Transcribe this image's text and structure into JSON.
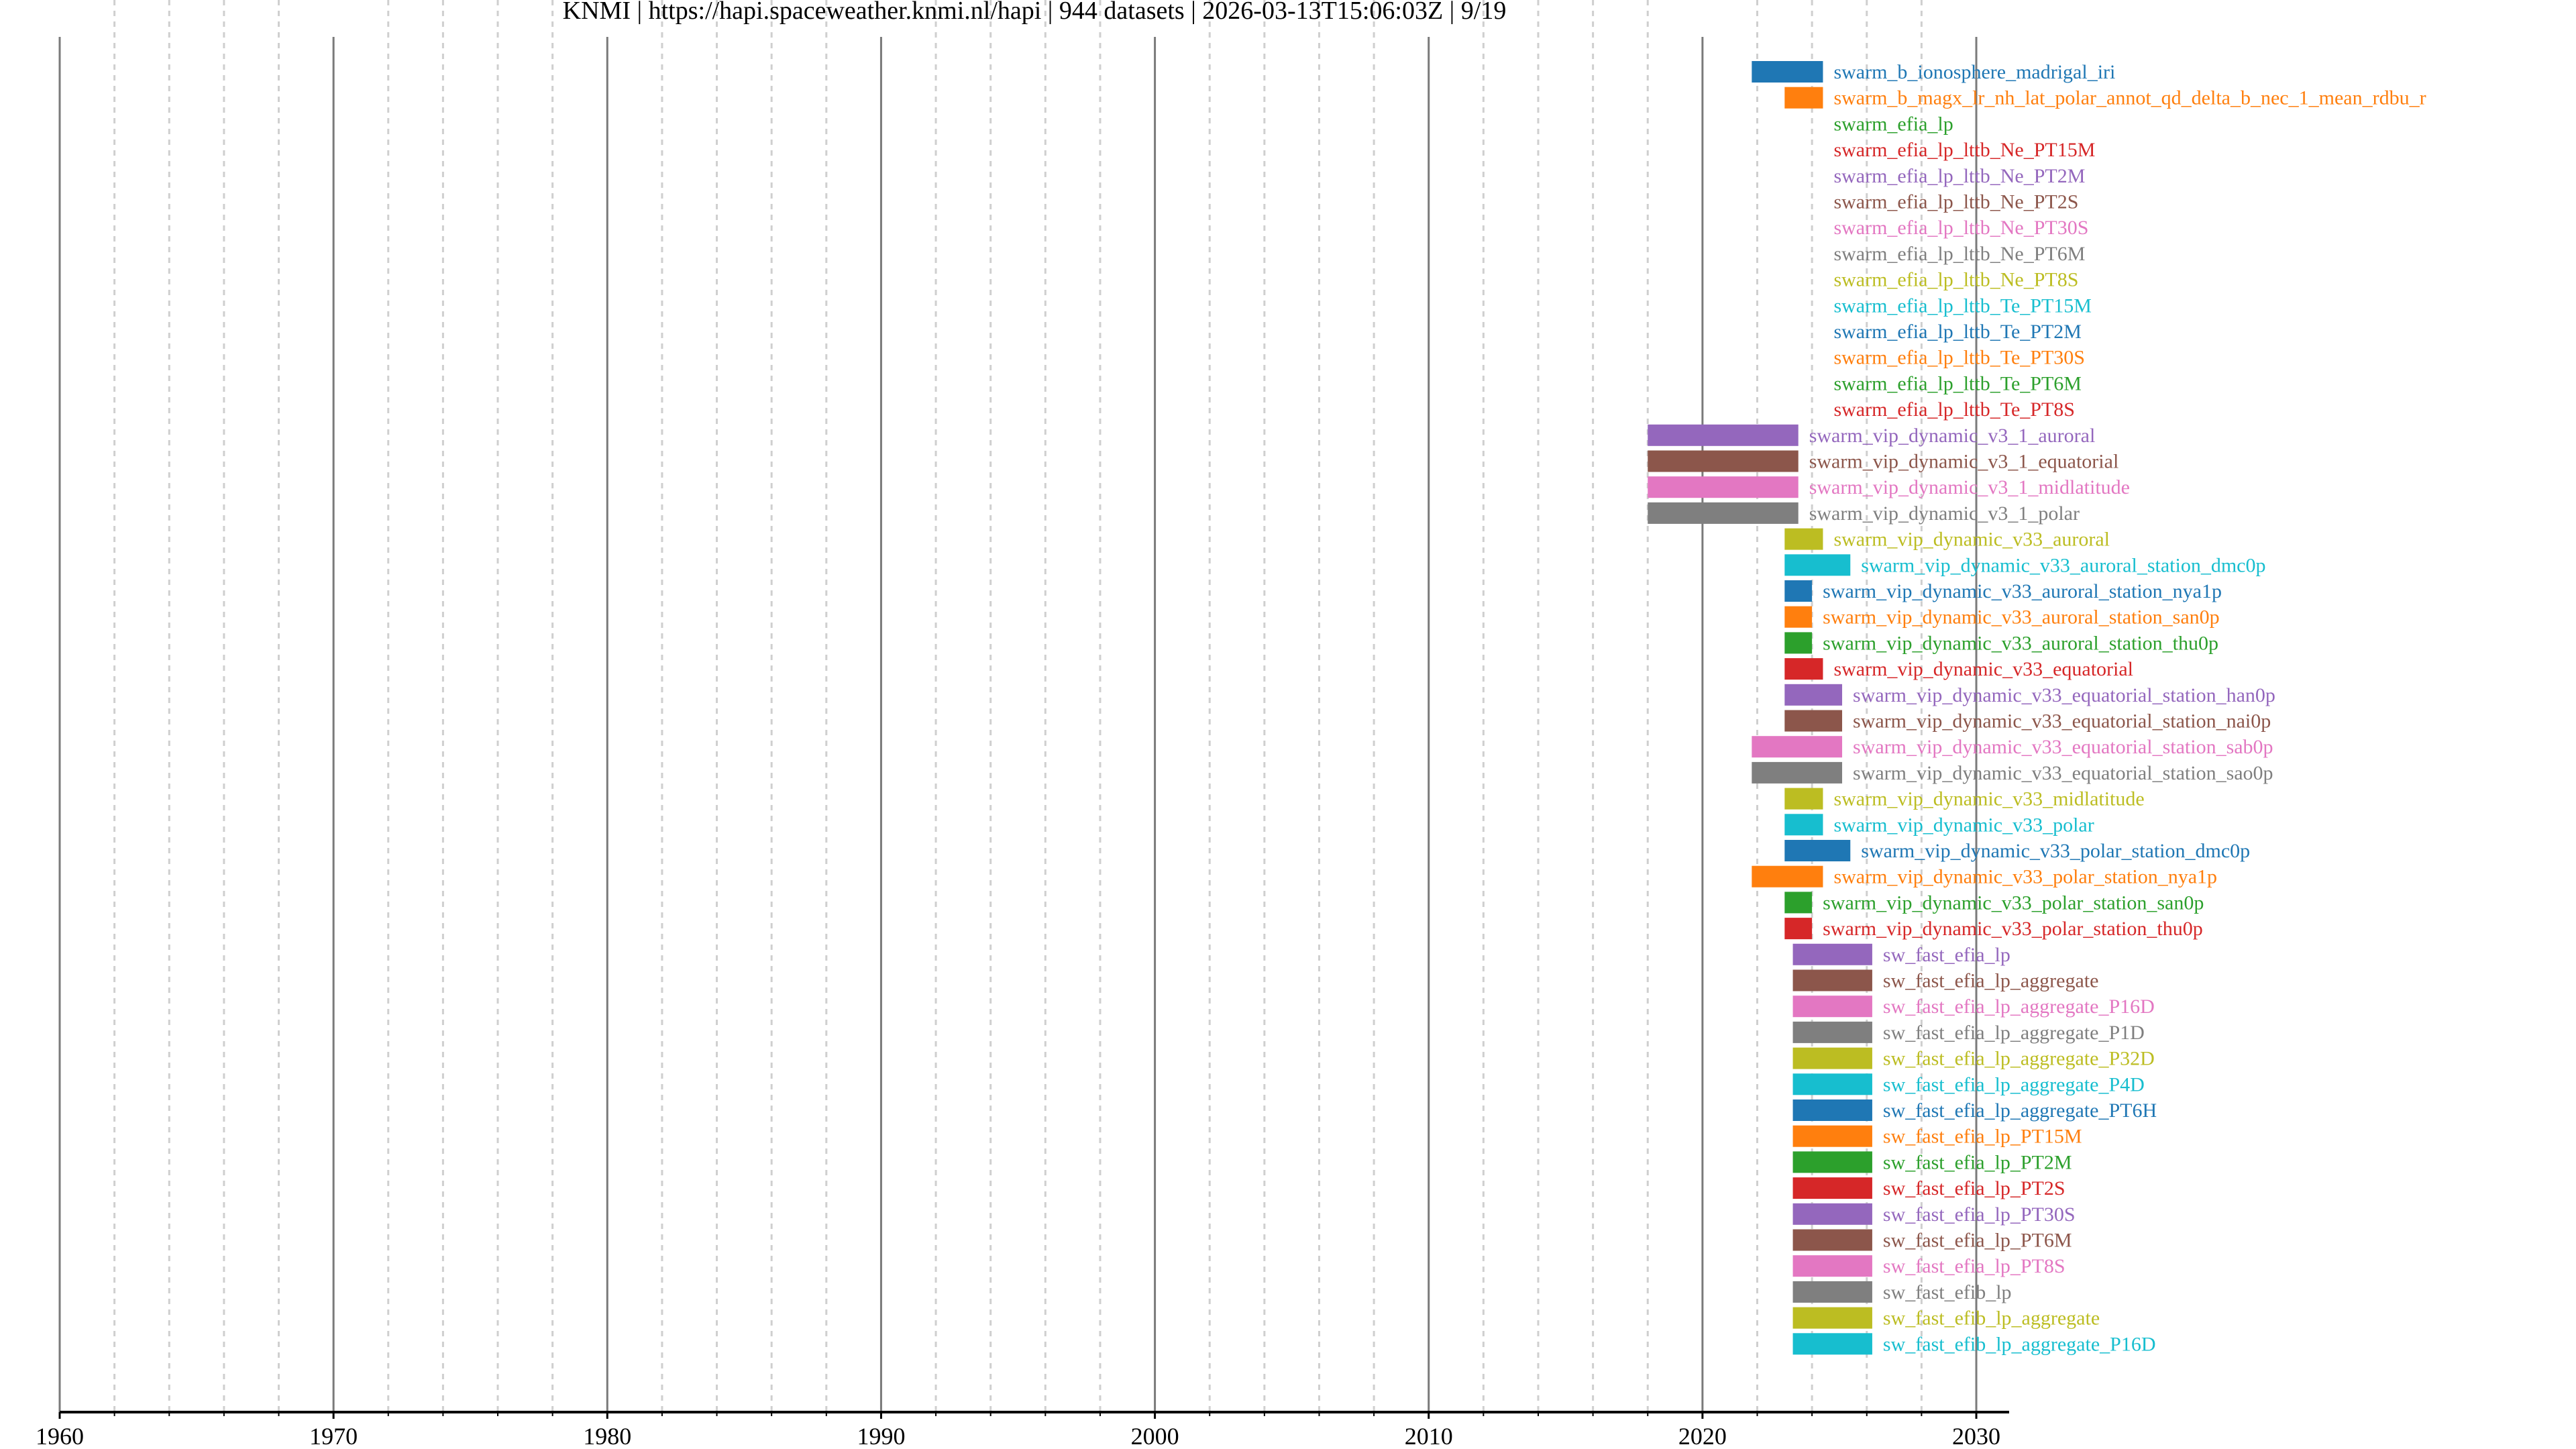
{
  "chart_data": {
    "type": "timeline",
    "title": "KNMI | https://hapi.spaceweather.knmi.nl/hapi | 944 datasets | 2026-03-13T15:06:03Z | 9/19",
    "xlabel": "",
    "ylabel": "",
    "xlim": [
      1960,
      2031.2
    ],
    "x_ticks": [
      1960,
      1970,
      1980,
      1990,
      2000,
      2010,
      2020,
      2030
    ],
    "x_tick_labels": [
      "1960",
      "1970",
      "1980",
      "1990",
      "2000",
      "2010",
      "2020",
      "2030"
    ],
    "minor_grid_step_years": 2,
    "grid": true,
    "palette": [
      "#1f77b4",
      "#ff7f0e",
      "#2ca02c",
      "#d62728",
      "#9467bd",
      "#8c564b",
      "#e377c2",
      "#7f7f7f",
      "#bcbd22",
      "#17becf"
    ],
    "series": [
      {
        "name": "swarm_b_ionosphere_madrigal_iri",
        "start": 2021.8,
        "end": 2024.4
      },
      {
        "name": "swarm_b_magx_lr_nh_lat_polar_annot_qd_delta_b_nec_1_mean_rdbu_r",
        "start": 2023.0,
        "end": 2024.4
      },
      {
        "name": "swarm_efia_lp",
        "start": 2024.4,
        "end": 2024.4
      },
      {
        "name": "swarm_efia_lp_lttb_Ne_PT15M",
        "start": 2024.4,
        "end": 2024.4
      },
      {
        "name": "swarm_efia_lp_lttb_Ne_PT2M",
        "start": 2024.4,
        "end": 2024.4
      },
      {
        "name": "swarm_efia_lp_lttb_Ne_PT2S",
        "start": 2024.4,
        "end": 2024.4
      },
      {
        "name": "swarm_efia_lp_lttb_Ne_PT30S",
        "start": 2024.4,
        "end": 2024.4
      },
      {
        "name": "swarm_efia_lp_lttb_Ne_PT6M",
        "start": 2024.4,
        "end": 2024.4
      },
      {
        "name": "swarm_efia_lp_lttb_Ne_PT8S",
        "start": 2024.4,
        "end": 2024.4
      },
      {
        "name": "swarm_efia_lp_lttb_Te_PT15M",
        "start": 2024.4,
        "end": 2024.4
      },
      {
        "name": "swarm_efia_lp_lttb_Te_PT2M",
        "start": 2024.4,
        "end": 2024.4
      },
      {
        "name": "swarm_efia_lp_lttb_Te_PT30S",
        "start": 2024.4,
        "end": 2024.4
      },
      {
        "name": "swarm_efia_lp_lttb_Te_PT6M",
        "start": 2024.4,
        "end": 2024.4
      },
      {
        "name": "swarm_efia_lp_lttb_Te_PT8S",
        "start": 2024.4,
        "end": 2024.4
      },
      {
        "name": "swarm_vip_dynamic_v3_1_auroral",
        "start": 2018.0,
        "end": 2023.5
      },
      {
        "name": "swarm_vip_dynamic_v3_1_equatorial",
        "start": 2018.0,
        "end": 2023.5
      },
      {
        "name": "swarm_vip_dynamic_v3_1_midlatitude",
        "start": 2018.0,
        "end": 2023.5
      },
      {
        "name": "swarm_vip_dynamic_v3_1_polar",
        "start": 2018.0,
        "end": 2023.5
      },
      {
        "name": "swarm_vip_dynamic_v33_auroral",
        "start": 2023.0,
        "end": 2024.4
      },
      {
        "name": "swarm_vip_dynamic_v33_auroral_station_dmc0p",
        "start": 2023.0,
        "end": 2025.4
      },
      {
        "name": "swarm_vip_dynamic_v33_auroral_station_nya1p",
        "start": 2023.0,
        "end": 2024.0
      },
      {
        "name": "swarm_vip_dynamic_v33_auroral_station_san0p",
        "start": 2023.0,
        "end": 2024.0
      },
      {
        "name": "swarm_vip_dynamic_v33_auroral_station_thu0p",
        "start": 2023.0,
        "end": 2024.0
      },
      {
        "name": "swarm_vip_dynamic_v33_equatorial",
        "start": 2023.0,
        "end": 2024.4
      },
      {
        "name": "swarm_vip_dynamic_v33_equatorial_station_han0p",
        "start": 2023.0,
        "end": 2025.1
      },
      {
        "name": "swarm_vip_dynamic_v33_equatorial_station_nai0p",
        "start": 2023.0,
        "end": 2025.1
      },
      {
        "name": "swarm_vip_dynamic_v33_equatorial_station_sab0p",
        "start": 2021.8,
        "end": 2025.1
      },
      {
        "name": "swarm_vip_dynamic_v33_equatorial_station_sao0p",
        "start": 2021.8,
        "end": 2025.1
      },
      {
        "name": "swarm_vip_dynamic_v33_midlatitude",
        "start": 2023.0,
        "end": 2024.4
      },
      {
        "name": "swarm_vip_dynamic_v33_polar",
        "start": 2023.0,
        "end": 2024.4
      },
      {
        "name": "swarm_vip_dynamic_v33_polar_station_dmc0p",
        "start": 2023.0,
        "end": 2025.4
      },
      {
        "name": "swarm_vip_dynamic_v33_polar_station_nya1p",
        "start": 2021.8,
        "end": 2024.4
      },
      {
        "name": "swarm_vip_dynamic_v33_polar_station_san0p",
        "start": 2023.0,
        "end": 2024.0
      },
      {
        "name": "swarm_vip_dynamic_v33_polar_station_thu0p",
        "start": 2023.0,
        "end": 2024.0
      },
      {
        "name": "sw_fast_efia_lp",
        "start": 2023.3,
        "end": 2026.2
      },
      {
        "name": "sw_fast_efia_lp_aggregate",
        "start": 2023.3,
        "end": 2026.2
      },
      {
        "name": "sw_fast_efia_lp_aggregate_P16D",
        "start": 2023.3,
        "end": 2026.2
      },
      {
        "name": "sw_fast_efia_lp_aggregate_P1D",
        "start": 2023.3,
        "end": 2026.2
      },
      {
        "name": "sw_fast_efia_lp_aggregate_P32D",
        "start": 2023.3,
        "end": 2026.2
      },
      {
        "name": "sw_fast_efia_lp_aggregate_P4D",
        "start": 2023.3,
        "end": 2026.2
      },
      {
        "name": "sw_fast_efia_lp_aggregate_PT6H",
        "start": 2023.3,
        "end": 2026.2
      },
      {
        "name": "sw_fast_efia_lp_PT15M",
        "start": 2023.3,
        "end": 2026.2
      },
      {
        "name": "sw_fast_efia_lp_PT2M",
        "start": 2023.3,
        "end": 2026.2
      },
      {
        "name": "sw_fast_efia_lp_PT2S",
        "start": 2023.3,
        "end": 2026.2
      },
      {
        "name": "sw_fast_efia_lp_PT30S",
        "start": 2023.3,
        "end": 2026.2
      },
      {
        "name": "sw_fast_efia_lp_PT6M",
        "start": 2023.3,
        "end": 2026.2
      },
      {
        "name": "sw_fast_efia_lp_PT8S",
        "start": 2023.3,
        "end": 2026.2
      },
      {
        "name": "sw_fast_efib_lp",
        "start": 2023.3,
        "end": 2026.2
      },
      {
        "name": "sw_fast_efib_lp_aggregate",
        "start": 2023.3,
        "end": 2026.2
      },
      {
        "name": "sw_fast_efib_lp_aggregate_P16D",
        "start": 2023.3,
        "end": 2026.2
      }
    ]
  }
}
